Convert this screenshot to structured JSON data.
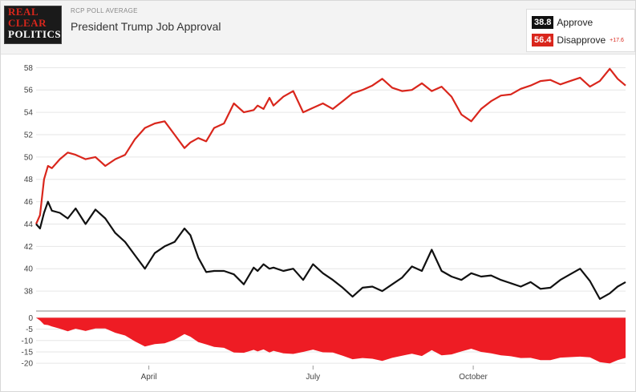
{
  "header": {
    "logo": [
      "REAL",
      "CLEAR",
      "POLITICS"
    ],
    "kicker": "RCP POLL AVERAGE",
    "title": "President Trump Job Approval"
  },
  "legend": [
    {
      "value": "38.8",
      "name": "Approve",
      "color": "#111111"
    },
    {
      "value": "56.4",
      "name": "Disapprove",
      "color": "#d9261c",
      "spread": "+17.6"
    }
  ],
  "chart_data": [
    {
      "type": "line",
      "title": "President Trump Job Approval",
      "ylim": [
        36.5,
        58.6
      ],
      "yticks": [
        38,
        40,
        42,
        44,
        46,
        48,
        50,
        52,
        54,
        56,
        58
      ],
      "x": [
        0,
        2,
        4,
        6,
        8,
        12,
        16,
        20,
        25,
        30,
        35,
        40,
        45,
        50,
        55,
        60,
        65,
        70,
        75,
        78,
        82,
        86,
        90,
        95,
        100,
        105,
        110,
        112,
        115,
        118,
        120,
        125,
        130,
        135,
        140,
        145,
        150,
        155,
        160,
        165,
        170,
        175,
        180,
        185,
        190,
        195,
        200,
        205,
        210,
        215,
        220,
        225,
        230,
        235,
        240,
        245,
        250,
        255,
        260,
        265,
        270,
        275,
        280,
        285,
        290,
        294,
        298
      ],
      "xticks": [
        {
          "label": "April",
          "x": 57
        },
        {
          "label": "July",
          "x": 140
        },
        {
          "label": "October",
          "x": 221
        }
      ],
      "grid": true,
      "series": [
        {
          "name": "Approve",
          "color": "#111111",
          "values": [
            44.0,
            43.6,
            45.0,
            46.0,
            45.2,
            45.0,
            44.5,
            45.4,
            44.0,
            45.3,
            44.5,
            43.2,
            42.4,
            41.2,
            40.0,
            41.4,
            42.0,
            42.4,
            43.6,
            43.0,
            41.0,
            39.7,
            39.8,
            39.8,
            39.5,
            38.6,
            40.1,
            39.8,
            40.4,
            40.0,
            40.1,
            39.8,
            40.0,
            39.0,
            40.4,
            39.6,
            39.0,
            38.3,
            37.5,
            38.3,
            38.4,
            38.0,
            38.6,
            39.2,
            40.2,
            39.8,
            41.7,
            39.8,
            39.3,
            39.0,
            39.6,
            39.3,
            39.4,
            39.0,
            38.7,
            38.4,
            38.8,
            38.2,
            38.3,
            39.0,
            39.5,
            40.0,
            38.9,
            37.3,
            37.8,
            38.4,
            38.8
          ]
        },
        {
          "name": "Disapprove",
          "color": "#d9261c",
          "values": [
            44.0,
            44.8,
            48.0,
            49.2,
            49.0,
            49.8,
            50.4,
            50.2,
            49.8,
            50.0,
            49.2,
            49.8,
            50.2,
            51.6,
            52.6,
            53.0,
            53.2,
            52.0,
            50.8,
            51.3,
            51.7,
            51.4,
            52.6,
            53.0,
            54.8,
            54.0,
            54.2,
            54.6,
            54.3,
            55.3,
            54.6,
            55.4,
            55.9,
            54.0,
            54.4,
            54.8,
            54.3,
            55.0,
            55.7,
            56.0,
            56.4,
            57.0,
            56.2,
            55.9,
            56.0,
            56.6,
            55.9,
            56.3,
            55.4,
            53.8,
            53.2,
            54.3,
            55.0,
            55.5,
            55.6,
            56.1,
            56.4,
            56.8,
            56.9,
            56.5,
            56.8,
            57.1,
            56.3,
            56.8,
            57.9,
            57.0,
            56.4
          ]
        }
      ]
    },
    {
      "type": "area",
      "ylim": [
        -21,
        0.5
      ],
      "yticks": [
        0,
        -5,
        -10,
        -15,
        -20
      ],
      "series": [
        {
          "name": "Spread",
          "color": "#ee1c24",
          "values": [
            0,
            -1.2,
            -3,
            -3.2,
            -3.8,
            -4.8,
            -5.9,
            -4.8,
            -5.8,
            -4.7,
            -4.7,
            -6.6,
            -7.8,
            -10.4,
            -12.6,
            -11.6,
            -11.2,
            -9.6,
            -7.2,
            -8.3,
            -10.7,
            -11.7,
            -12.8,
            -13.2,
            -15.3,
            -15.4,
            -14.1,
            -14.8,
            -13.9,
            -15.3,
            -14.5,
            -15.6,
            -15.9,
            -15.0,
            -14.0,
            -15.2,
            -15.3,
            -16.7,
            -18.2,
            -17.7,
            -18.0,
            -19.0,
            -17.6,
            -16.7,
            -15.8,
            -16.8,
            -14.2,
            -16.5,
            -16.1,
            -14.8,
            -13.6,
            -15.0,
            -15.6,
            -16.5,
            -16.9,
            -17.7,
            -17.6,
            -18.6,
            -18.6,
            -17.5,
            -17.3,
            -17.1,
            -17.4,
            -19.5,
            -20.1,
            -18.6,
            -17.6
          ]
        }
      ]
    }
  ]
}
